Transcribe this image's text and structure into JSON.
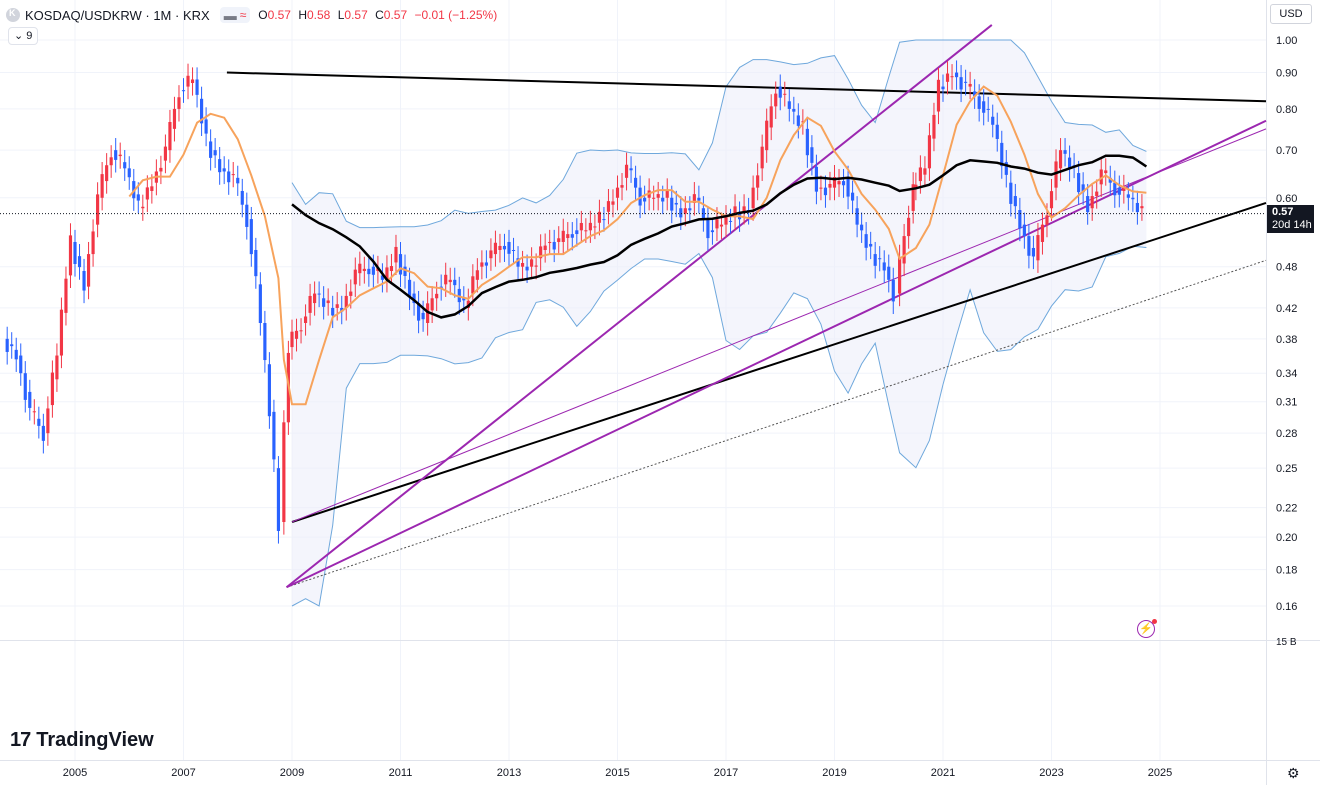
{
  "header": {
    "symbol": "KOSDAQ/USDKRW · 1M · KRX",
    "ohlc": [
      {
        "label": "O",
        "value": "0.57"
      },
      {
        "label": "H",
        "value": "0.58"
      },
      {
        "label": "L",
        "value": "0.57"
      },
      {
        "label": "C",
        "value": "0.57"
      }
    ],
    "change": "−0.01 (−1.25%)",
    "indicators_toggle": "9"
  },
  "currency": "USD",
  "price_tag": {
    "price": "0.57",
    "countdown": "20d 14h"
  },
  "brand": "TradingView",
  "colors": {
    "up": "#f23645",
    "down": "#2962ff",
    "ma_short": "#f7a35c",
    "ma_long": "#000000",
    "band": "#6fa8dc",
    "band_fill": "#eceffa",
    "trendline_black": "#000000",
    "trendline_purple": "#9c27b0",
    "grid": "#f0f3fa",
    "axis_text": "#131722"
  },
  "icons": [
    "symbol-logo-icon",
    "chevron-down-icon",
    "alert-flash-icon",
    "settings-gear-icon"
  ],
  "chart_data": {
    "type": "candlestick",
    "title": "",
    "xlabel": "",
    "ylabel": "",
    "scale": "log",
    "ylim": [
      0.14,
      1.05
    ],
    "y_ticks": [
      "1.00",
      "0.90",
      "0.80",
      "0.70",
      "0.60",
      "0.57",
      "0.48",
      "0.42",
      "0.38",
      "0.34",
      "0.31",
      "0.28",
      "0.25",
      "0.22",
      "0.20",
      "0.18",
      "0.16"
    ],
    "volume_label": "15 B",
    "x_ticks": [
      "2005",
      "2007",
      "2009",
      "2011",
      "2013",
      "2015",
      "2017",
      "2019",
      "2021",
      "2023",
      "2025"
    ],
    "last_price": 0.57,
    "close_series": {
      "x": [
        2003.75,
        2004.0,
        2004.25,
        2004.5,
        2004.75,
        2005.0,
        2005.25,
        2005.5,
        2005.75,
        2006.0,
        2006.25,
        2006.5,
        2006.75,
        2007.0,
        2007.25,
        2007.5,
        2007.75,
        2008.0,
        2008.25,
        2008.5,
        2008.75,
        2008.85,
        2009.0,
        2009.25,
        2009.5,
        2009.75,
        2010.0,
        2010.25,
        2010.5,
        2010.75,
        2011.0,
        2011.25,
        2011.5,
        2011.75,
        2012.0,
        2012.25,
        2012.5,
        2012.75,
        2013.0,
        2013.25,
        2013.5,
        2013.75,
        2014.0,
        2014.25,
        2014.5,
        2014.75,
        2015.0,
        2015.25,
        2015.5,
        2015.75,
        2016.0,
        2016.25,
        2016.5,
        2016.75,
        2017.0,
        2017.25,
        2017.5,
        2017.75,
        2018.0,
        2018.25,
        2018.5,
        2018.75,
        2019.0,
        2019.25,
        2019.5,
        2019.75,
        2020.0,
        2020.2,
        2020.5,
        2020.75,
        2021.0,
        2021.25,
        2021.5,
        2021.75,
        2022.0,
        2022.25,
        2022.5,
        2022.75,
        2023.0,
        2023.25,
        2023.5,
        2023.75,
        2024.0,
        2024.25,
        2024.5,
        2024.75
      ],
      "values": [
        0.38,
        0.36,
        0.3,
        0.28,
        0.36,
        0.52,
        0.45,
        0.6,
        0.7,
        0.66,
        0.58,
        0.63,
        0.7,
        0.85,
        0.88,
        0.72,
        0.66,
        0.64,
        0.56,
        0.4,
        0.25,
        0.21,
        0.37,
        0.4,
        0.44,
        0.42,
        0.42,
        0.47,
        0.48,
        0.46,
        0.5,
        0.44,
        0.4,
        0.45,
        0.46,
        0.42,
        0.48,
        0.5,
        0.52,
        0.48,
        0.48,
        0.52,
        0.52,
        0.54,
        0.54,
        0.56,
        0.6,
        0.66,
        0.6,
        0.6,
        0.6,
        0.57,
        0.6,
        0.54,
        0.55,
        0.57,
        0.58,
        0.7,
        0.86,
        0.8,
        0.75,
        0.62,
        0.62,
        0.64,
        0.55,
        0.5,
        0.48,
        0.44,
        0.62,
        0.66,
        0.86,
        0.9,
        0.86,
        0.82,
        0.76,
        0.63,
        0.55,
        0.49,
        0.58,
        0.7,
        0.65,
        0.58,
        0.65,
        0.62,
        0.6,
        0.57
      ]
    },
    "series": [
      {
        "name": "",
        "role": "short moving average",
        "color": "#f7a35c"
      },
      {
        "name": "",
        "role": "long moving average",
        "color": "#000000"
      },
      {
        "name": "",
        "role": "upper/lower band",
        "color": "#6fa8dc"
      }
    ]
  }
}
